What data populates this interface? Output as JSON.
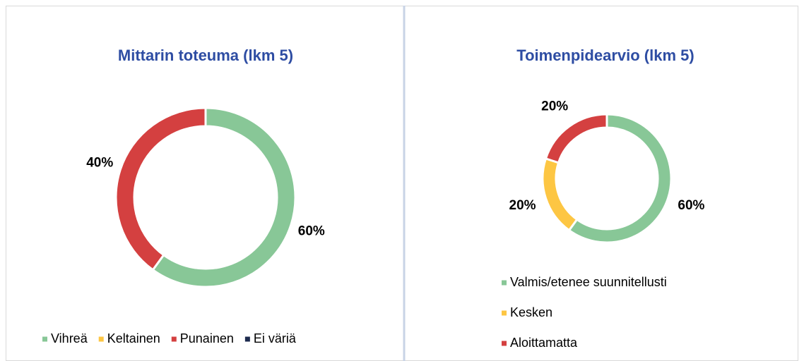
{
  "chart_data": [
    {
      "type": "donut",
      "title": "Mittarin toteuma (lkm 5)",
      "categories": [
        "Vihreä",
        "Keltainen",
        "Punainen",
        "Ei väriä"
      ],
      "values": [
        60,
        0,
        40,
        0
      ],
      "value_labels": [
        "60%",
        null,
        "40%",
        null
      ],
      "colors": [
        "#88c797",
        "#fdc643",
        "#d44040",
        "#1c2a4e"
      ]
    },
    {
      "type": "donut",
      "title": "Toimenpidearvio (lkm 5)",
      "categories": [
        "Valmis/etenee suunnitellusti",
        "Kesken",
        "Aloittamatta"
      ],
      "values": [
        60,
        20,
        20
      ],
      "value_labels": [
        "60%",
        "20%",
        "20%"
      ],
      "colors": [
        "#88c797",
        "#fdc643",
        "#d44040"
      ]
    }
  ]
}
